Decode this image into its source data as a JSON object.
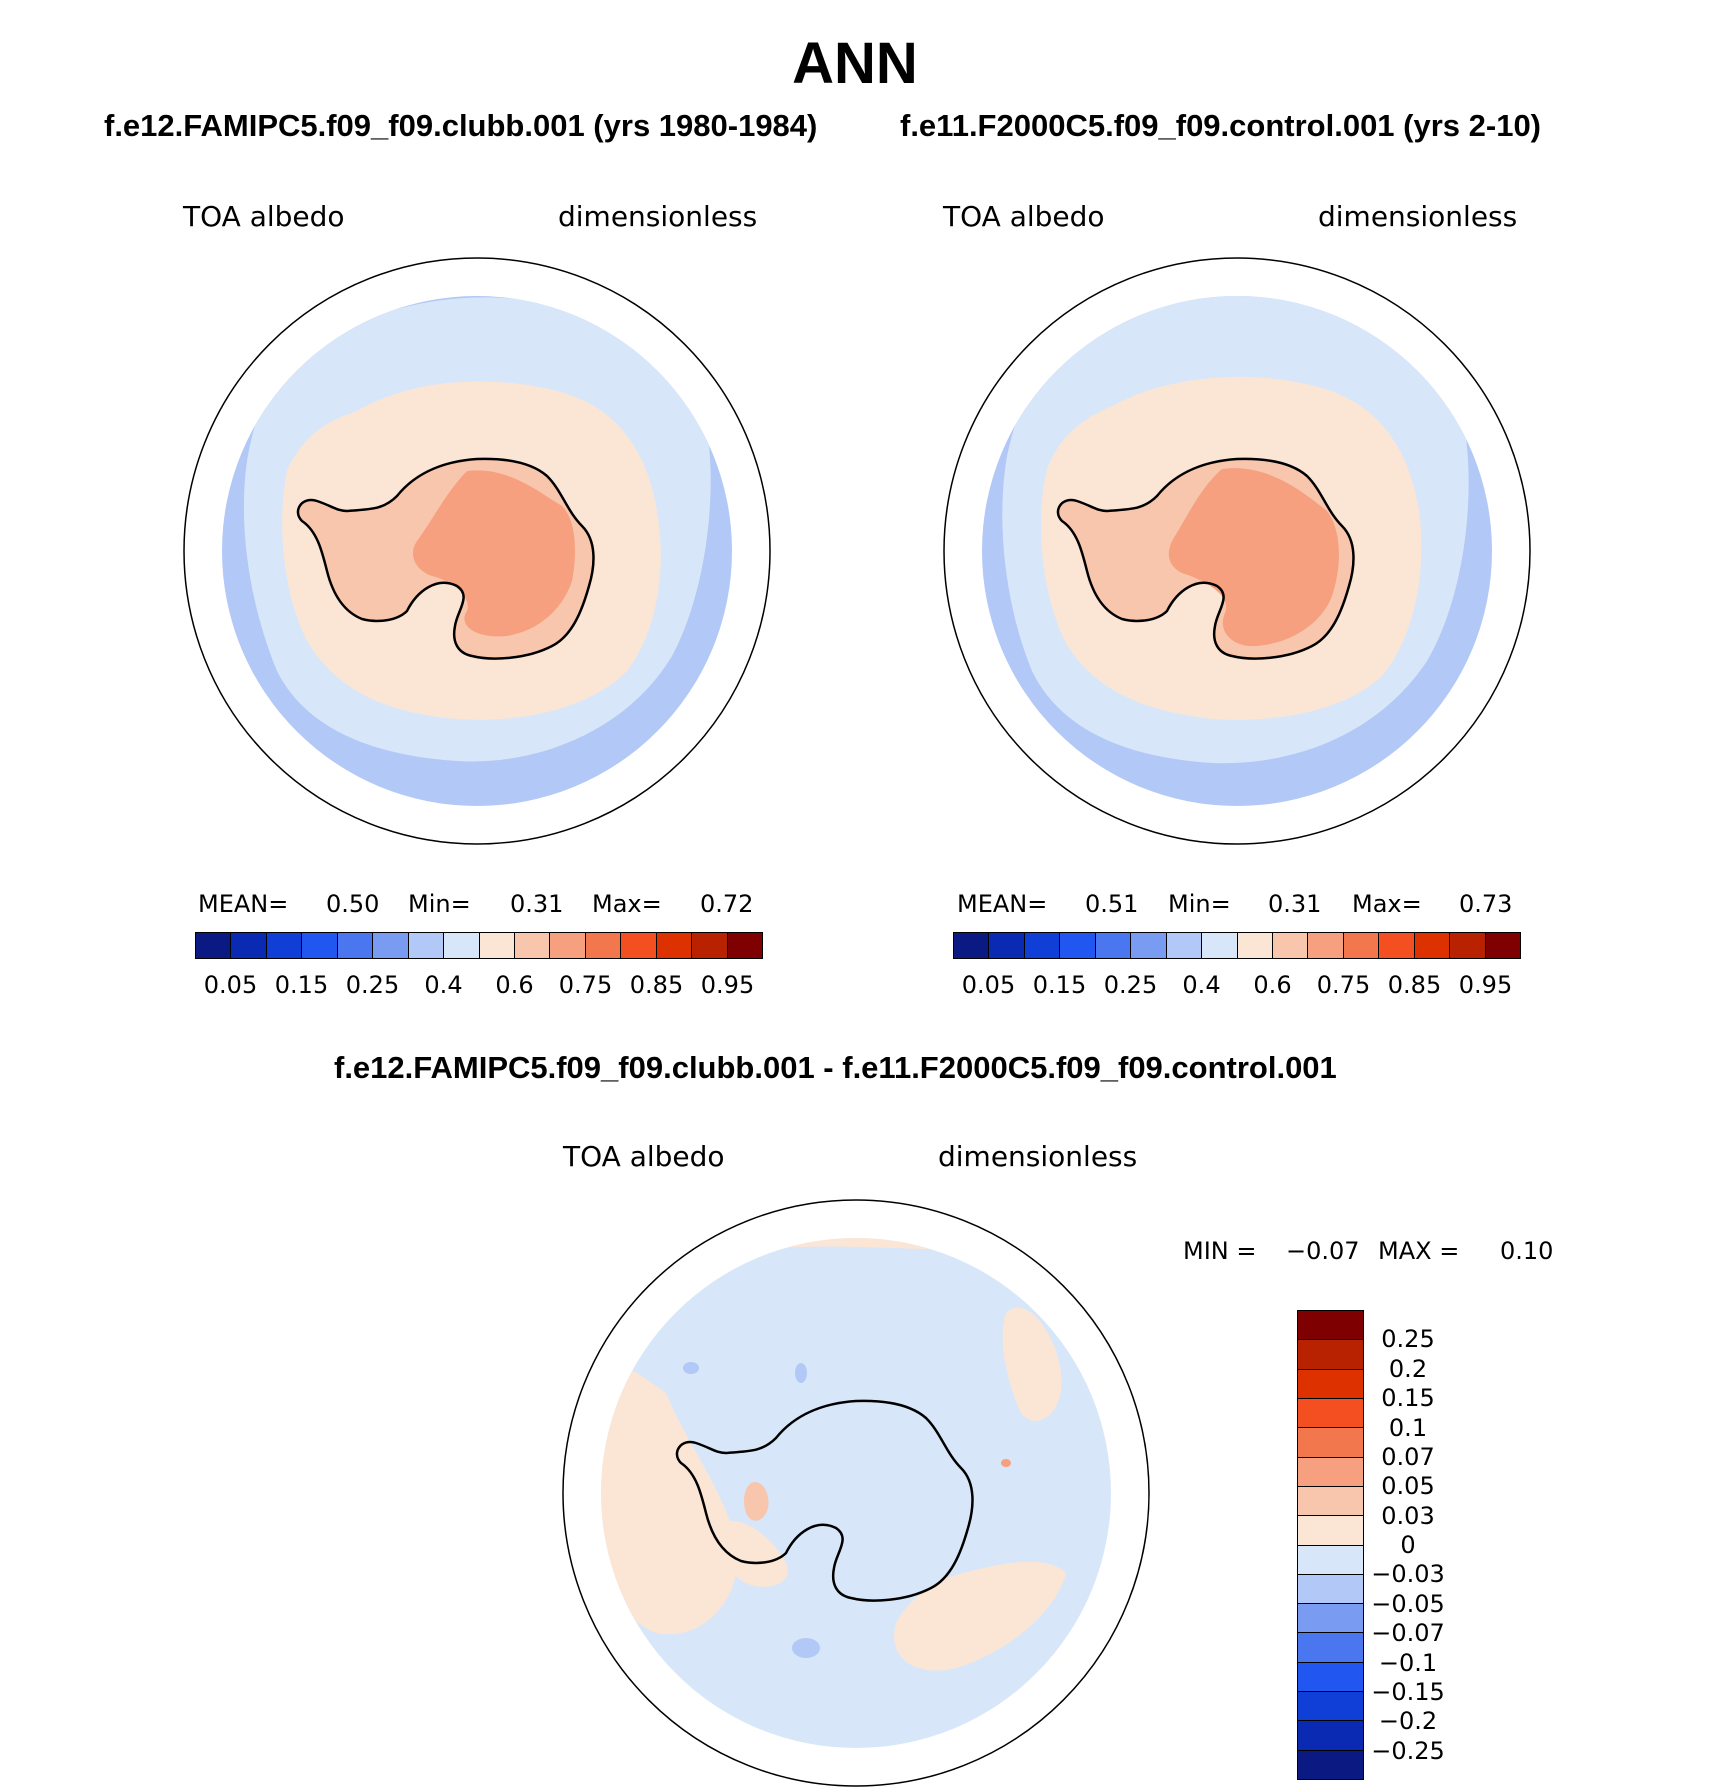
{
  "title": "ANN",
  "case1_title": "f.e12.FAMIPC5.f09_f09.clubb.001 (yrs 1980-1984)",
  "case2_title": "f.e11.F2000C5.f09_f09.control.001 (yrs 2-10)",
  "diff_title": "f.e12.FAMIPC5.f09_f09.clubb.001 - f.e11.F2000C5.f09_f09.control.001",
  "variable": "TOA albedo",
  "units": "dimensionless",
  "panel1": {
    "mean_label": "MEAN=",
    "mean": "0.50",
    "min_label": "Min=",
    "min": "0.31",
    "max_label": "Max=",
    "max": "0.72"
  },
  "panel2": {
    "mean_label": "MEAN=",
    "mean": "0.51",
    "min_label": "Min=",
    "min": "0.31",
    "max_label": "Max=",
    "max": "0.73"
  },
  "diff_panel": {
    "min_label": "MIN =",
    "min": "−0.07",
    "max_label": "MAX =",
    "max": "0.10"
  },
  "colorbar_abs": {
    "colors": [
      "#0a1a82",
      "#0b2ab4",
      "#0f3fd6",
      "#2156f0",
      "#4a77f0",
      "#7a9bf2",
      "#b2c8f6",
      "#d7e7f9",
      "#fbe6d6",
      "#f8c6ad",
      "#f6a07f",
      "#f2774c",
      "#f44f20",
      "#dd3100",
      "#b82200",
      "#7e0000"
    ],
    "labels": [
      "0.05",
      "0.15",
      "0.25",
      "0.4",
      "0.6",
      "0.75",
      "0.85",
      "0.95"
    ]
  },
  "colorbar_diff": {
    "colors": [
      "#7e0000",
      "#b82200",
      "#dd3100",
      "#f44f20",
      "#f2774c",
      "#f6a07f",
      "#f8c6ad",
      "#fbe6d6",
      "#d7e7f9",
      "#b2c8f6",
      "#7a9bf2",
      "#4a77f0",
      "#2156f0",
      "#0f3fd6",
      "#0b2ab4",
      "#0a1a82"
    ],
    "labels": [
      "0.25",
      "0.2",
      "0.15",
      "0.1",
      "0.07",
      "0.05",
      "0.03",
      "0",
      "−0.03",
      "−0.05",
      "−0.07",
      "−0.1",
      "−0.15",
      "−0.2",
      "−0.25"
    ]
  },
  "map_colors": {
    "ocean_outer": "#b2c8f6",
    "ocean_mid": "#d7e7f9",
    "ice_edge": "#fbe6d6",
    "land_low": "#f8c6ad",
    "land_high": "#f6a07f",
    "diff_base": "#d7e7f9",
    "diff_pos": "#fbe6d6",
    "diff_pos2": "#f6a07f",
    "diff_neg": "#b2c8f6",
    "diff_neg2": "#7a9bf2",
    "coast": "#000000"
  }
}
